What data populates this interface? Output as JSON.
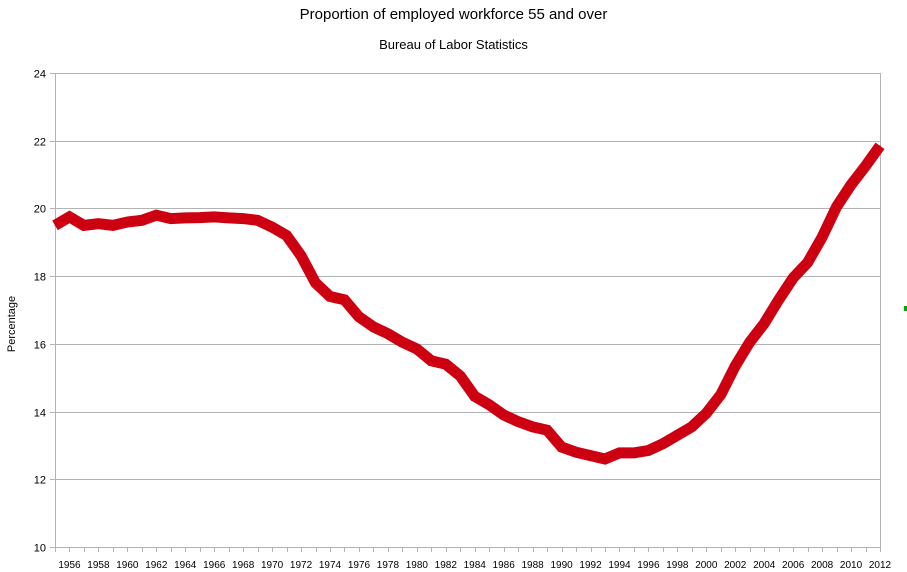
{
  "chart_data": {
    "type": "line",
    "title": "Proportion of employed workforce 55 and over",
    "subtitle": "Bureau of Labor Statistics",
    "xlabel": "",
    "ylabel": "Percentage",
    "ylim": [
      10,
      24
    ],
    "yticks": [
      10,
      12,
      14,
      16,
      18,
      20,
      22,
      24
    ],
    "xticks": [
      1956,
      1958,
      1960,
      1962,
      1964,
      1966,
      1968,
      1970,
      1972,
      1974,
      1976,
      1978,
      1980,
      1982,
      1984,
      1986,
      1988,
      1990,
      1992,
      1994,
      1996,
      1998,
      2000,
      2002,
      2004,
      2006,
      2008,
      2010,
      2012
    ],
    "grid": "horizontal",
    "line_color": "#cc0010",
    "x": [
      1955,
      1956,
      1957,
      1958,
      1959,
      1960,
      1961,
      1962,
      1963,
      1964,
      1965,
      1966,
      1967,
      1968,
      1969,
      1970,
      1971,
      1972,
      1973,
      1974,
      1975,
      1976,
      1977,
      1978,
      1979,
      1980,
      1981,
      1982,
      1983,
      1984,
      1985,
      1986,
      1987,
      1988,
      1989,
      1990,
      1991,
      1992,
      1993,
      1994,
      1995,
      1996,
      1997,
      1998,
      1999,
      2000,
      2001,
      2002,
      2003,
      2004,
      2005,
      2006,
      2007,
      2008,
      2009,
      2010,
      2011,
      2012
    ],
    "values": [
      19.5,
      19.75,
      19.5,
      19.55,
      19.5,
      19.6,
      19.65,
      19.8,
      19.7,
      19.72,
      19.73,
      19.75,
      19.72,
      19.7,
      19.65,
      19.45,
      19.2,
      18.6,
      17.8,
      17.4,
      17.3,
      16.8,
      16.5,
      16.3,
      16.05,
      15.85,
      15.5,
      15.4,
      15.05,
      14.45,
      14.2,
      13.9,
      13.7,
      13.55,
      13.45,
      12.95,
      12.8,
      12.7,
      12.6,
      12.78,
      12.78,
      12.85,
      13.05,
      13.3,
      13.55,
      13.95,
      14.5,
      15.35,
      16.05,
      16.6,
      17.3,
      17.95,
      18.4,
      19.15,
      20.05,
      20.7,
      21.25,
      21.85
    ]
  }
}
